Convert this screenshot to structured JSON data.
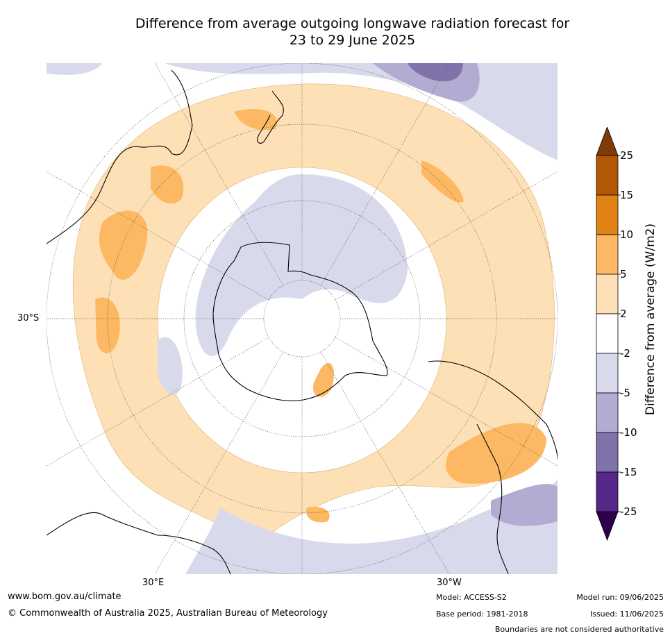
{
  "title_line1": "Difference from average outgoing longwave radiation forecast for",
  "title_line2": "23 to 29 June 2025",
  "map": {
    "lat_label": "30°S",
    "lon_labels": {
      "east": "30°E",
      "west": "30°W"
    }
  },
  "colorbar": {
    "title": "Difference from average (W/m2)",
    "levels": [
      "25",
      "15",
      "10",
      "5",
      "2",
      "-2",
      "-5",
      "-10",
      "-15",
      "-25"
    ],
    "colors": {
      "above_25": "#7f3b08",
      "c15_25": "#b35806",
      "c10_15": "#e08214",
      "c5_10": "#fdb863",
      "c2_5": "#fee0b6",
      "neutral": "#ffffff",
      "n2_5": "#d8daeb",
      "n5_10": "#b2abd2",
      "n10_15": "#8073ac",
      "n15_25": "#542788",
      "below_25": "#2d004b"
    }
  },
  "footer": {
    "website": "www.bom.gov.au/climate",
    "copyright": "© Commonwealth of Australia 2025, Australian Bureau of Meteorology",
    "model": "Model: ACCESS-S2",
    "base_period": "Base period: 1981-2018",
    "model_run": "Model run: 09/06/2025",
    "issued": "Issued: 11/06/2025",
    "disclaimer": "Boundaries are not considered authoritative"
  }
}
